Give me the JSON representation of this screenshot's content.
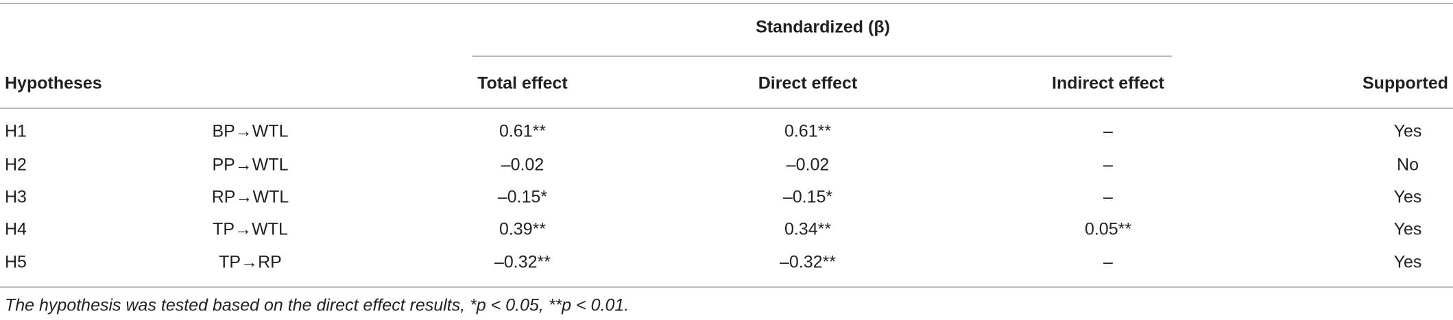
{
  "table": {
    "group_header": "Standardized (β)",
    "columns": [
      "Hypotheses",
      "Total effect",
      "Direct effect",
      "Indirect effect",
      "Supported"
    ],
    "rows": [
      [
        "H1",
        "BP→WTL",
        "0.61**",
        "0.61**",
        "–",
        "Yes"
      ],
      [
        "H2",
        "PP→WTL",
        "–0.02",
        "–0.02",
        "–",
        "No"
      ],
      [
        "H3",
        "RP→WTL",
        "–0.15*",
        "–0.15*",
        "–",
        "Yes"
      ],
      [
        "H4",
        "TP→WTL",
        "0.39**",
        "0.34**",
        "0.05**",
        "Yes"
      ],
      [
        "H5",
        "TP→RP",
        "–0.32**",
        "–0.32**",
        "–",
        "Yes"
      ]
    ],
    "footnote": "The hypothesis was tested based on the direct effect results, *p < 0.05, **p < 0.01."
  }
}
